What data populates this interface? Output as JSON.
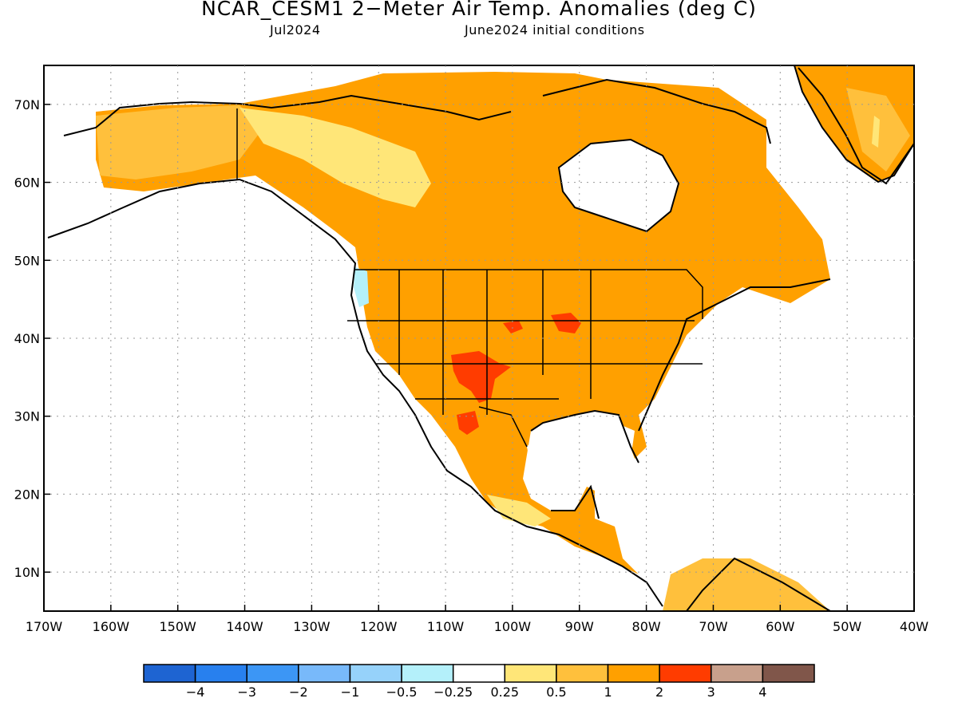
{
  "title": "NCAR_CESM1 2−Meter Air Temp. Anomalies (deg C)",
  "subtitle_left": "Jul2024",
  "subtitle_right": "June2024 initial conditions",
  "map": {
    "lon_range": [
      -170,
      -40
    ],
    "lat_range": [
      5,
      75
    ],
    "lon_labels": [
      "170W",
      "160W",
      "150W",
      "140W",
      "130W",
      "120W",
      "110W",
      "100W",
      "90W",
      "80W",
      "70W",
      "60W",
      "50W",
      "40W"
    ],
    "lat_labels": [
      "10N",
      "20N",
      "30N",
      "40N",
      "50N",
      "60N",
      "70N"
    ],
    "grid": true
  },
  "colorbar": {
    "colors": [
      "#1e64d2",
      "#2880ee",
      "#3c96f5",
      "#78b9fa",
      "#96d2fa",
      "#b4f0fa",
      "#ffffff",
      "#ffe678",
      "#ffc03c",
      "#ffa000",
      "#ff3c00",
      "#c8a08c",
      "#80564a"
    ],
    "labels": [
      "−4",
      "−3",
      "−2",
      "−1",
      "−0.5",
      "−0.25",
      "0.25",
      "0.5",
      "1",
      "2",
      "3",
      "4"
    ]
  }
}
